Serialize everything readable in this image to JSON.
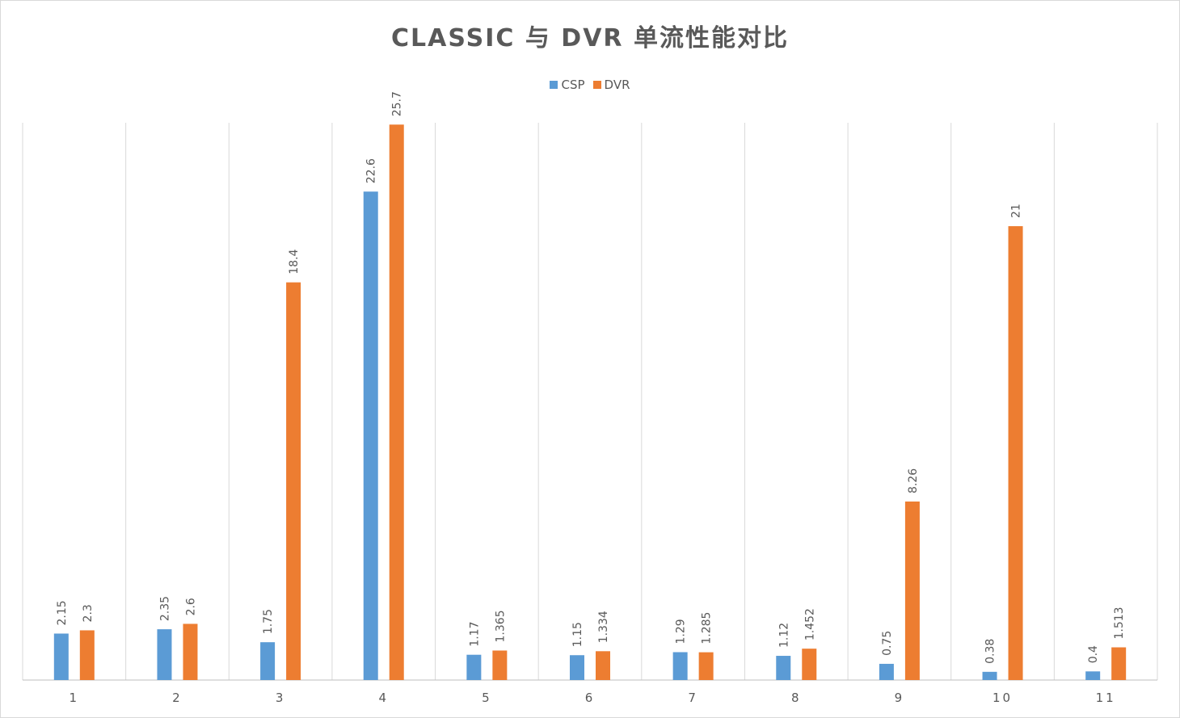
{
  "chart_data": {
    "type": "bar",
    "title": "CLASSIC 与 DVR 单流性能对比",
    "xlabel": "",
    "ylabel": "",
    "categories": [
      "1",
      "2",
      "3",
      "4",
      "5",
      "6",
      "7",
      "8",
      "9",
      "10",
      "11"
    ],
    "series": [
      {
        "name": "CSP",
        "color": "#5b9bd5",
        "values": [
          2.15,
          2.35,
          1.75,
          22.6,
          1.17,
          1.15,
          1.29,
          1.12,
          0.75,
          0.38,
          0.4
        ]
      },
      {
        "name": "DVR",
        "color": "#ed7d31",
        "values": [
          2.3,
          2.6,
          18.4,
          25.7,
          1.365,
          1.334,
          1.285,
          1.452,
          8.26,
          21,
          1.513
        ]
      }
    ],
    "ylim": [
      0,
      29
    ],
    "grid": "vertical",
    "legend_position": "top",
    "data_labels": true,
    "colors": {
      "gridline": "#d9d9d9",
      "axis": "#bfbfbf",
      "text": "#595959"
    }
  }
}
